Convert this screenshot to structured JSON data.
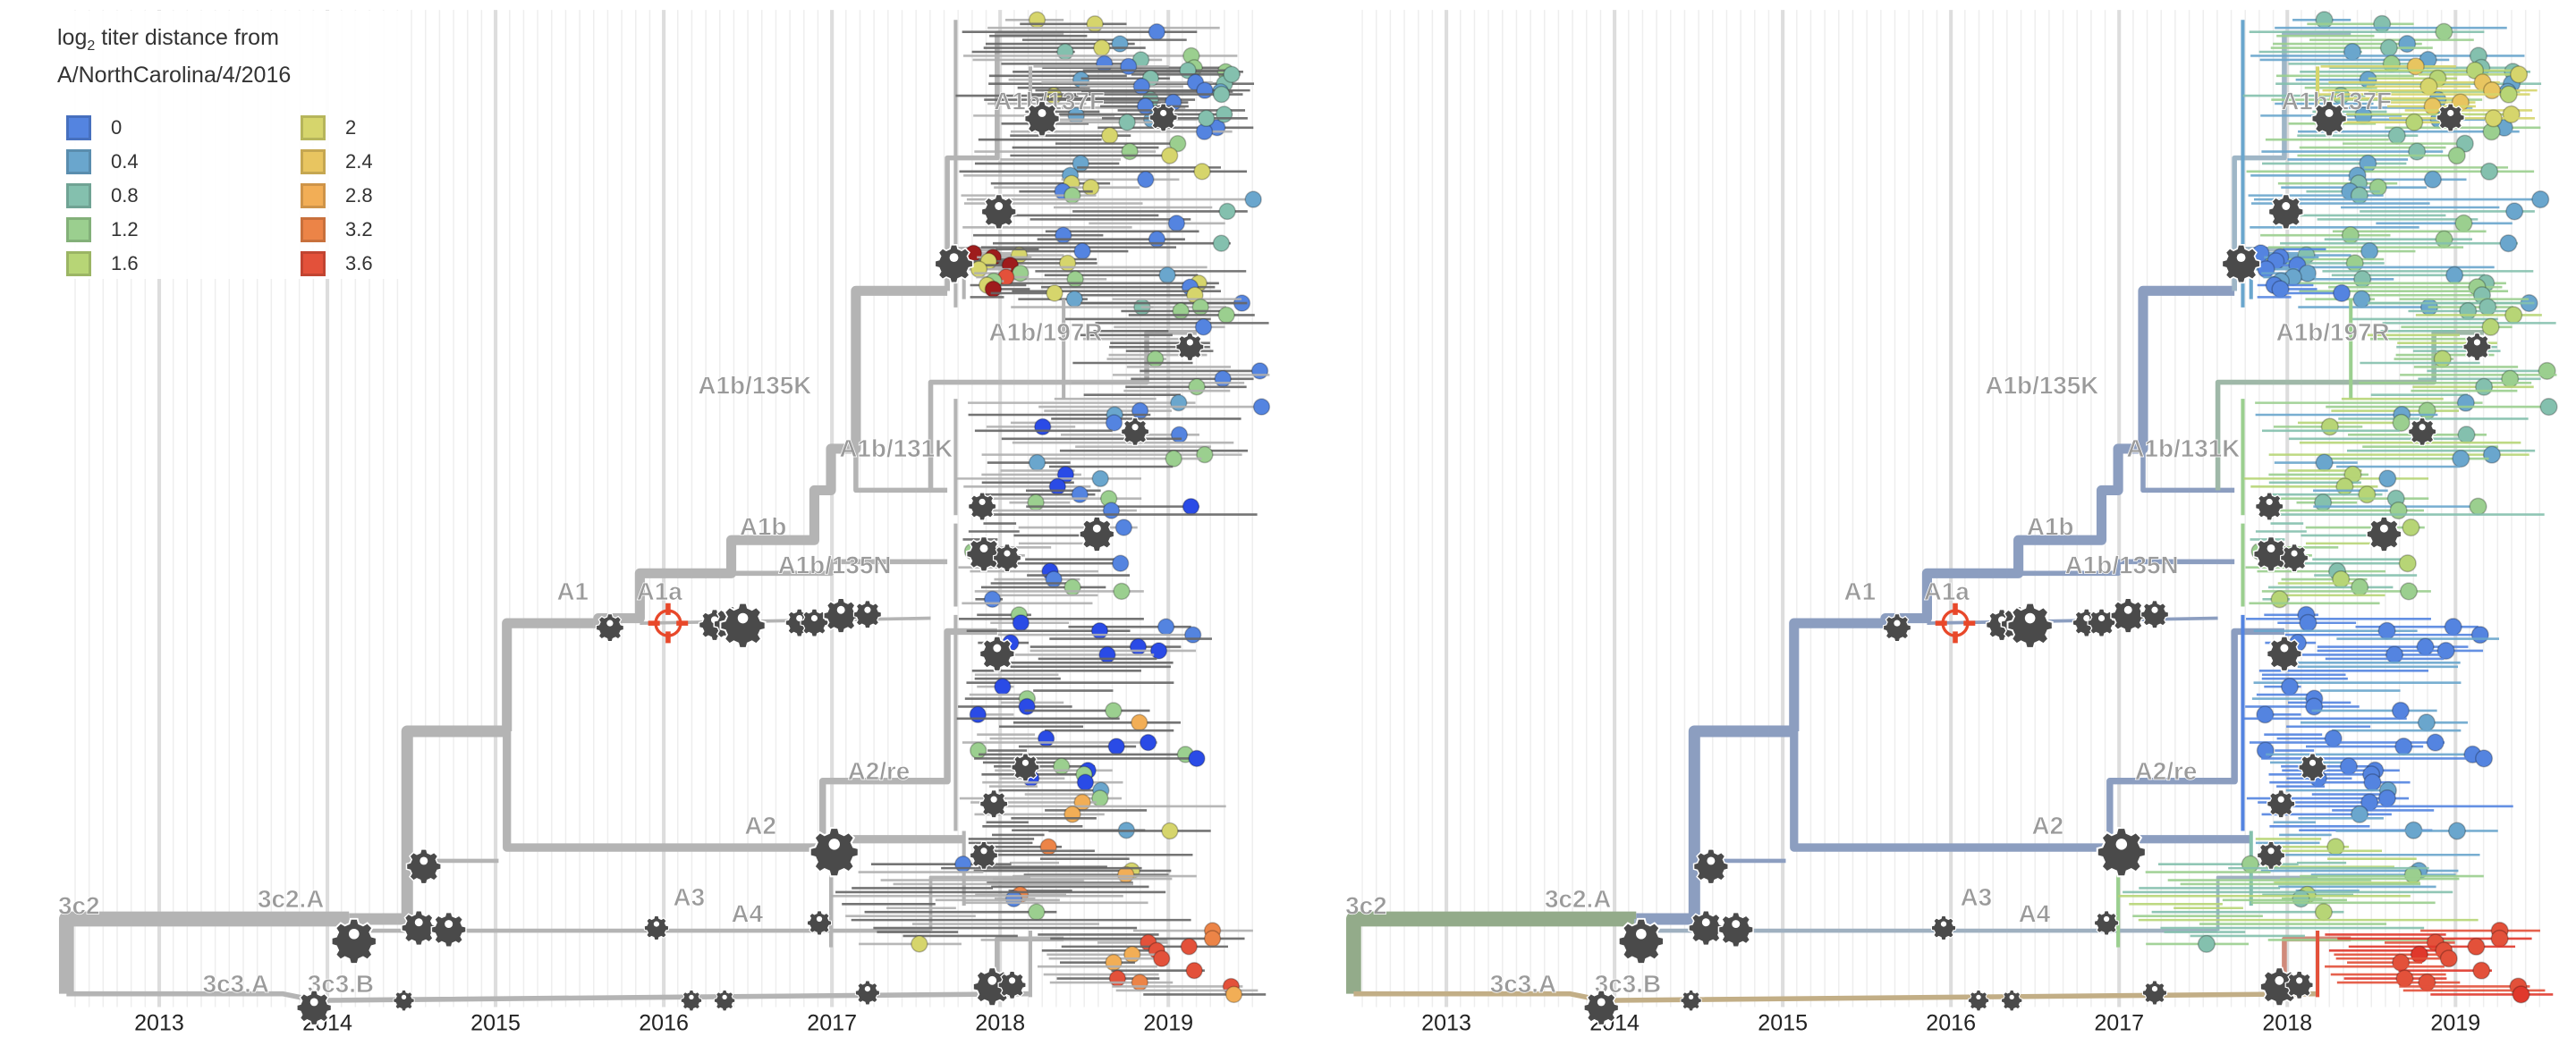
{
  "legend": {
    "title_prefix": "log",
    "title_sub": "2",
    "title_rest": " titer distance from",
    "title_line2": "A/NorthCarolina/4/2016",
    "entries": [
      {
        "label": "0",
        "color": "#5484e0"
      },
      {
        "label": "0.4",
        "color": "#6aa6cd"
      },
      {
        "label": "0.8",
        "color": "#84c0ae"
      },
      {
        "label": "1.2",
        "color": "#9bcf8f"
      },
      {
        "label": "1.6",
        "color": "#b7d576"
      },
      {
        "label": "2",
        "color": "#d6d56c"
      },
      {
        "label": "2.4",
        "color": "#e8c560"
      },
      {
        "label": "2.8",
        "color": "#f2ae56"
      },
      {
        "label": "3.2",
        "color": "#ec8447"
      },
      {
        "label": "3.6",
        "color": "#e3513a"
      }
    ]
  },
  "axis": {
    "years": [
      "2013",
      "2014",
      "2015",
      "2016",
      "2017",
      "2018",
      "2019"
    ]
  },
  "clades": [
    {
      "label": "A1b/137F"
    },
    {
      "label": "A1b/197R"
    },
    {
      "label": "A1b/135K"
    },
    {
      "label": "A1b/131K"
    },
    {
      "label": "A1b"
    },
    {
      "label": "A1b/135N"
    },
    {
      "label": "A1"
    },
    {
      "label": "A1a"
    },
    {
      "label": "A2/re"
    },
    {
      "label": "A2"
    },
    {
      "label": "3c2"
    },
    {
      "label": "3c2.A"
    },
    {
      "label": "A3"
    },
    {
      "label": "A4"
    },
    {
      "label": "3c3.A"
    },
    {
      "label": "3c3.B"
    }
  ],
  "colors": {
    "branch_gray": "#b4b4b4",
    "branch_blue": "#8c9ec0",
    "reference_marker": "#e8482a",
    "mutation_icon": "#4a4a4a"
  }
}
